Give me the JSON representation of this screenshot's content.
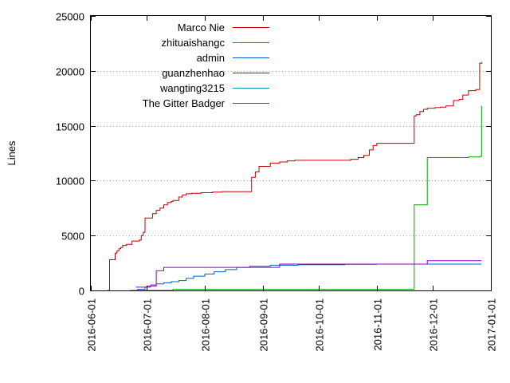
{
  "chart_data": {
    "type": "line",
    "title": "",
    "xlabel": "",
    "ylabel": "Lines",
    "ylim": [
      0,
      25000
    ],
    "xlim": [
      "2016-06-01",
      "2017-01-01"
    ],
    "y_ticks": [
      0,
      5000,
      10000,
      15000,
      20000,
      25000
    ],
    "y_tick_labels": [
      "0",
      "5000",
      "10000",
      "15000",
      "20000",
      "25000"
    ],
    "x_ticks": [
      "2016-06-01",
      "2016-07-01",
      "2016-08-01",
      "2016-09-01",
      "2016-10-01",
      "2016-11-01",
      "2016-12-01",
      "2017-01-01"
    ],
    "x_tick_labels": [
      "2016-06-01",
      "2016-07-01",
      "2016-08-01",
      "2016-09-01",
      "2016-10-01",
      "2016-11-01",
      "2016-12-01",
      "2017-01-01"
    ],
    "grid": true,
    "legend_placement": "top-left",
    "series": [
      {
        "name": "Marco Nie",
        "color": "#c00000",
        "x": [
          "2016-06-10",
          "2016-06-11",
          "2016-06-13",
          "2016-06-14",
          "2016-06-15",
          "2016-06-16",
          "2016-06-17",
          "2016-06-18",
          "2016-06-20",
          "2016-06-23",
          "2016-06-25",
          "2016-06-27",
          "2016-06-28",
          "2016-06-29",
          "2016-06-30",
          "2016-07-04",
          "2016-07-06",
          "2016-07-08",
          "2016-07-10",
          "2016-07-12",
          "2016-07-14",
          "2016-07-15",
          "2016-07-18",
          "2016-07-20",
          "2016-07-22",
          "2016-07-25",
          "2016-07-30",
          "2016-08-05",
          "2016-08-10",
          "2016-08-25",
          "2016-08-26",
          "2016-08-28",
          "2016-08-30",
          "2016-09-05",
          "2016-09-10",
          "2016-09-14",
          "2016-09-18",
          "2016-10-01",
          "2016-10-15",
          "2016-10-18",
          "2016-10-22",
          "2016-10-25",
          "2016-10-28",
          "2016-10-30",
          "2016-11-01",
          "2016-11-05",
          "2016-11-10",
          "2016-11-21",
          "2016-11-22",
          "2016-11-24",
          "2016-11-26",
          "2016-11-28",
          "2016-12-02",
          "2016-12-05",
          "2016-12-08",
          "2016-12-12",
          "2016-12-15",
          "2016-12-17",
          "2016-12-20",
          "2016-12-24",
          "2016-12-26",
          "2016-12-27"
        ],
        "y": [
          0,
          2800,
          2800,
          3400,
          3600,
          3800,
          3900,
          4100,
          4200,
          4500,
          4500,
          4600,
          5000,
          5300,
          6600,
          7000,
          7300,
          7500,
          7800,
          8000,
          8100,
          8200,
          8500,
          8700,
          8800,
          8850,
          8900,
          8950,
          9000,
          9000,
          10300,
          10800,
          11300,
          11600,
          11700,
          11800,
          11850,
          11850,
          11850,
          11950,
          12100,
          12300,
          12800,
          13200,
          13400,
          13400,
          13400,
          15900,
          16000,
          16300,
          16500,
          16600,
          16650,
          16700,
          16800,
          17300,
          17400,
          17800,
          18200,
          18300,
          20700,
          20800
        ]
      },
      {
        "name": "zhituaishangc",
        "color": "#00a000",
        "x": [
          "2016-06-22",
          "2016-07-15",
          "2016-11-20",
          "2016-11-21",
          "2016-11-27",
          "2016-11-28",
          "2016-12-20",
          "2016-12-26",
          "2016-12-27"
        ],
        "y": [
          0,
          100,
          100,
          7800,
          7800,
          12100,
          12150,
          12200,
          16800
        ]
      },
      {
        "name": "admin",
        "color": "#0060c0",
        "x": [
          "2016-06-22",
          "2016-06-26",
          "2016-06-30",
          "2016-07-03",
          "2016-07-06",
          "2016-07-10",
          "2016-07-14",
          "2016-07-18",
          "2016-07-22",
          "2016-07-26",
          "2016-08-01",
          "2016-08-06",
          "2016-08-12",
          "2016-08-18",
          "2016-08-25",
          "2016-09-05",
          "2016-09-20",
          "2016-10-15",
          "2016-11-01",
          "2016-11-15",
          "2016-11-28",
          "2016-12-27"
        ],
        "y": [
          0,
          100,
          300,
          500,
          600,
          700,
          800,
          900,
          1100,
          1300,
          1500,
          1700,
          1900,
          2100,
          2200,
          2300,
          2350,
          2380,
          2400,
          2400,
          2400,
          2400
        ]
      },
      {
        "name": "guanzhenhao",
        "color": "#9000c0",
        "x": [
          "2016-06-25",
          "2016-07-01",
          "2016-07-06",
          "2016-07-10",
          "2016-08-15",
          "2016-09-10",
          "2016-11-27",
          "2016-11-28",
          "2016-12-27"
        ],
        "y": [
          300,
          400,
          1800,
          2100,
          2100,
          2400,
          2400,
          2700,
          2700
        ]
      },
      {
        "name": "wangting3215",
        "color": "#00a0a0",
        "x": [],
        "y": []
      },
      {
        "name": "The Gitter Badger",
        "color": "#a04000",
        "x": [],
        "y": []
      }
    ]
  }
}
